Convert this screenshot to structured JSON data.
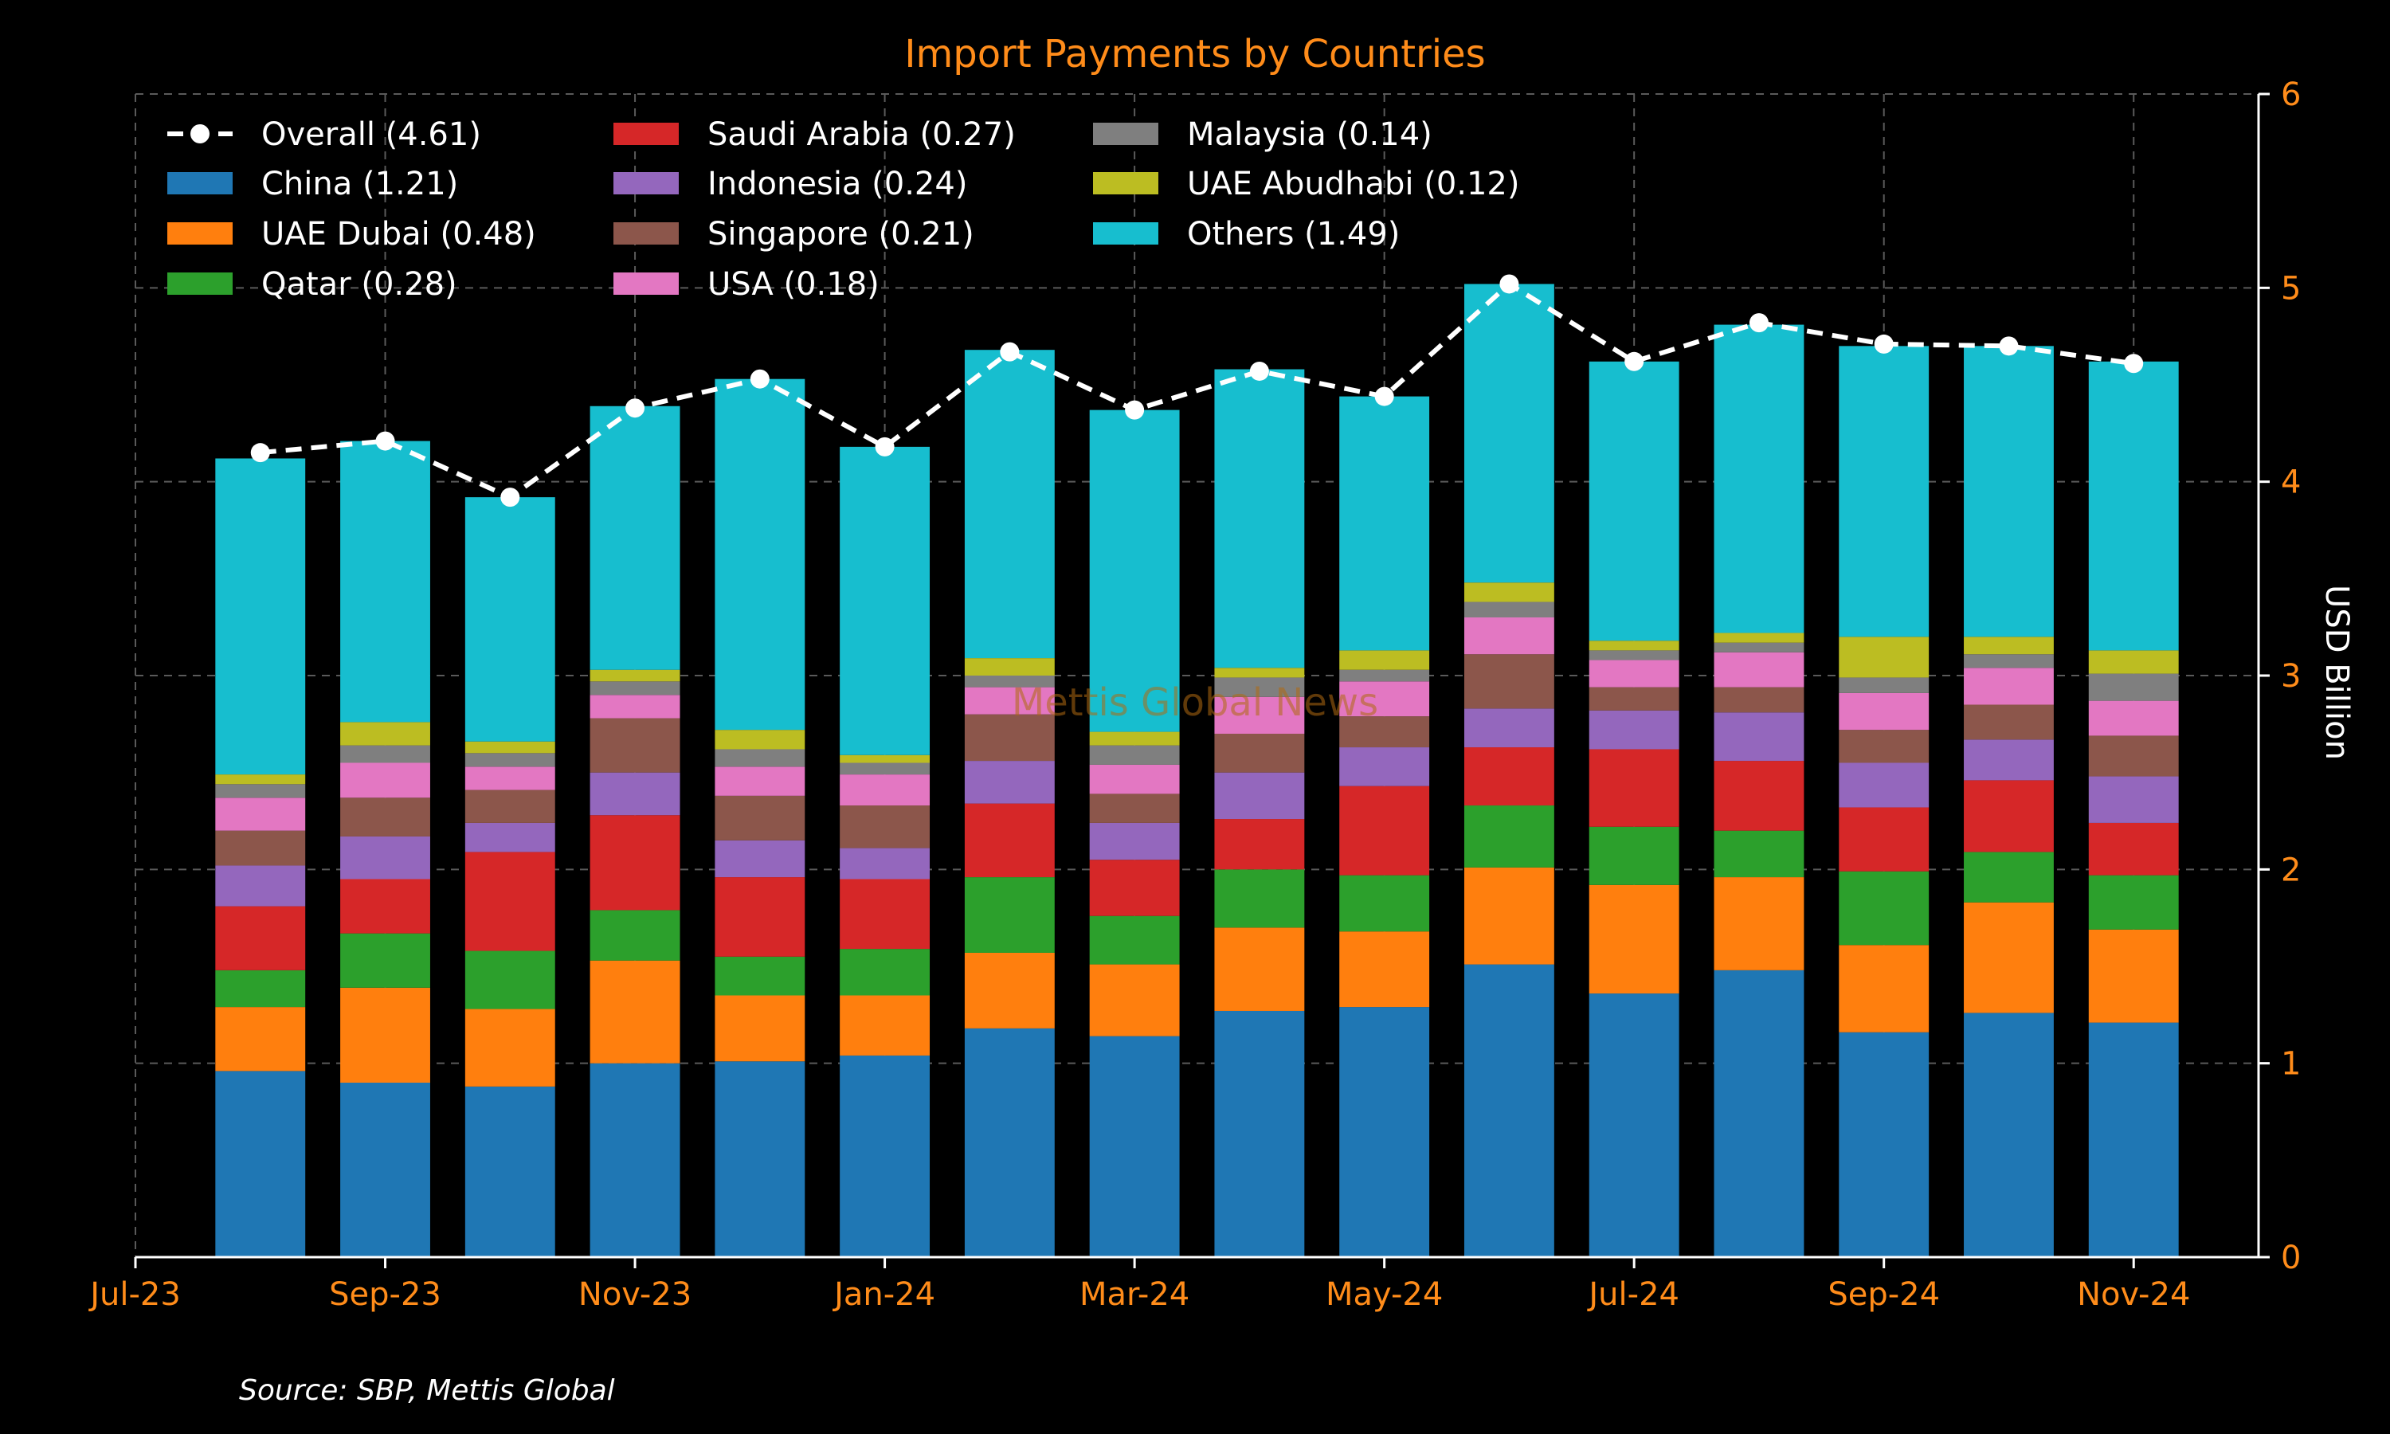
{
  "chart_data": {
    "type": "bar",
    "stacked": true,
    "title": "Import Payments by Countries",
    "ylabel": "USD Billion",
    "y_axis_position": "right",
    "ylim": [
      0,
      6
    ],
    "y_ticks": [
      0,
      1,
      2,
      3,
      4,
      5,
      6
    ],
    "xlim": [
      "2023-07",
      "2024-12"
    ],
    "x_ticks": [
      "Jul-23",
      "Sep-23",
      "Nov-23",
      "Jan-24",
      "Mar-24",
      "May-24",
      "Jul-24",
      "Sep-24",
      "Nov-24"
    ],
    "x_tick_months": [
      "2023-07",
      "2023-09",
      "2023-11",
      "2024-01",
      "2024-03",
      "2024-05",
      "2024-07",
      "2024-09",
      "2024-11"
    ],
    "x": [
      "2023-08",
      "2023-09",
      "2023-10",
      "2023-11",
      "2023-12",
      "2024-01",
      "2024-02",
      "2024-03",
      "2024-04",
      "2024-05",
      "2024-06",
      "2024-07",
      "2024-08",
      "2024-09",
      "2024-10",
      "2024-11"
    ],
    "grid": true,
    "legend_position": "top-left",
    "series": [
      {
        "name": "China (1.21)",
        "color": "#1f77b4",
        "values": [
          0.96,
          0.9,
          0.88,
          1.0,
          1.01,
          1.04,
          1.18,
          1.14,
          1.27,
          1.29,
          1.51,
          1.36,
          1.48,
          1.16,
          1.26,
          1.21
        ]
      },
      {
        "name": "UAE Dubai (0.48)",
        "color": "#ff7f0e",
        "values": [
          0.33,
          0.49,
          0.4,
          0.53,
          0.34,
          0.31,
          0.39,
          0.37,
          0.43,
          0.39,
          0.5,
          0.56,
          0.48,
          0.45,
          0.57,
          0.48
        ]
      },
      {
        "name": "Qatar (0.28)",
        "color": "#2ca02c",
        "values": [
          0.19,
          0.28,
          0.3,
          0.26,
          0.2,
          0.24,
          0.39,
          0.25,
          0.3,
          0.29,
          0.32,
          0.3,
          0.24,
          0.38,
          0.26,
          0.28
        ]
      },
      {
        "name": "Saudi Arabia (0.27)",
        "color": "#d62728",
        "values": [
          0.33,
          0.28,
          0.51,
          0.49,
          0.41,
          0.36,
          0.38,
          0.29,
          0.26,
          0.46,
          0.3,
          0.4,
          0.36,
          0.33,
          0.37,
          0.27
        ]
      },
      {
        "name": "Indonesia (0.24)",
        "color": "#9467bd",
        "values": [
          0.21,
          0.22,
          0.15,
          0.22,
          0.19,
          0.16,
          0.22,
          0.19,
          0.24,
          0.2,
          0.2,
          0.2,
          0.25,
          0.23,
          0.21,
          0.24
        ]
      },
      {
        "name": "Singapore (0.21)",
        "color": "#8c564b",
        "values": [
          0.18,
          0.2,
          0.17,
          0.28,
          0.23,
          0.22,
          0.24,
          0.15,
          0.2,
          0.16,
          0.28,
          0.12,
          0.13,
          0.17,
          0.18,
          0.21
        ]
      },
      {
        "name": "USA (0.18)",
        "color": "#e377c2",
        "values": [
          0.17,
          0.18,
          0.12,
          0.12,
          0.15,
          0.16,
          0.14,
          0.15,
          0.19,
          0.18,
          0.19,
          0.14,
          0.18,
          0.19,
          0.19,
          0.18
        ]
      },
      {
        "name": "Malaysia (0.14)",
        "color": "#7f7f7f",
        "values": [
          0.07,
          0.09,
          0.07,
          0.07,
          0.09,
          0.06,
          0.06,
          0.1,
          0.1,
          0.06,
          0.08,
          0.05,
          0.05,
          0.08,
          0.07,
          0.14
        ]
      },
      {
        "name": "UAE Abudhabi (0.12)",
        "color": "#bcbd22",
        "values": [
          0.05,
          0.12,
          0.06,
          0.06,
          0.1,
          0.04,
          0.09,
          0.07,
          0.05,
          0.1,
          0.1,
          0.05,
          0.05,
          0.21,
          0.09,
          0.12
        ]
      },
      {
        "name": "Others (1.49)",
        "color": "#17becf",
        "values": [
          1.63,
          1.45,
          1.26,
          1.36,
          1.81,
          1.59,
          1.59,
          1.66,
          1.54,
          1.31,
          1.54,
          1.44,
          1.59,
          1.5,
          1.5,
          1.49
        ]
      }
    ],
    "line": {
      "name": "Overall (4.61)",
      "color": "#ffffff",
      "style": "dashed",
      "values": [
        4.15,
        4.21,
        3.92,
        4.38,
        4.53,
        4.18,
        4.67,
        4.37,
        4.57,
        4.44,
        5.02,
        4.62,
        4.82,
        4.71,
        4.7,
        4.61
      ]
    },
    "watermark": "Mettis Global News",
    "source": "Source: SBP, Mettis Global"
  }
}
